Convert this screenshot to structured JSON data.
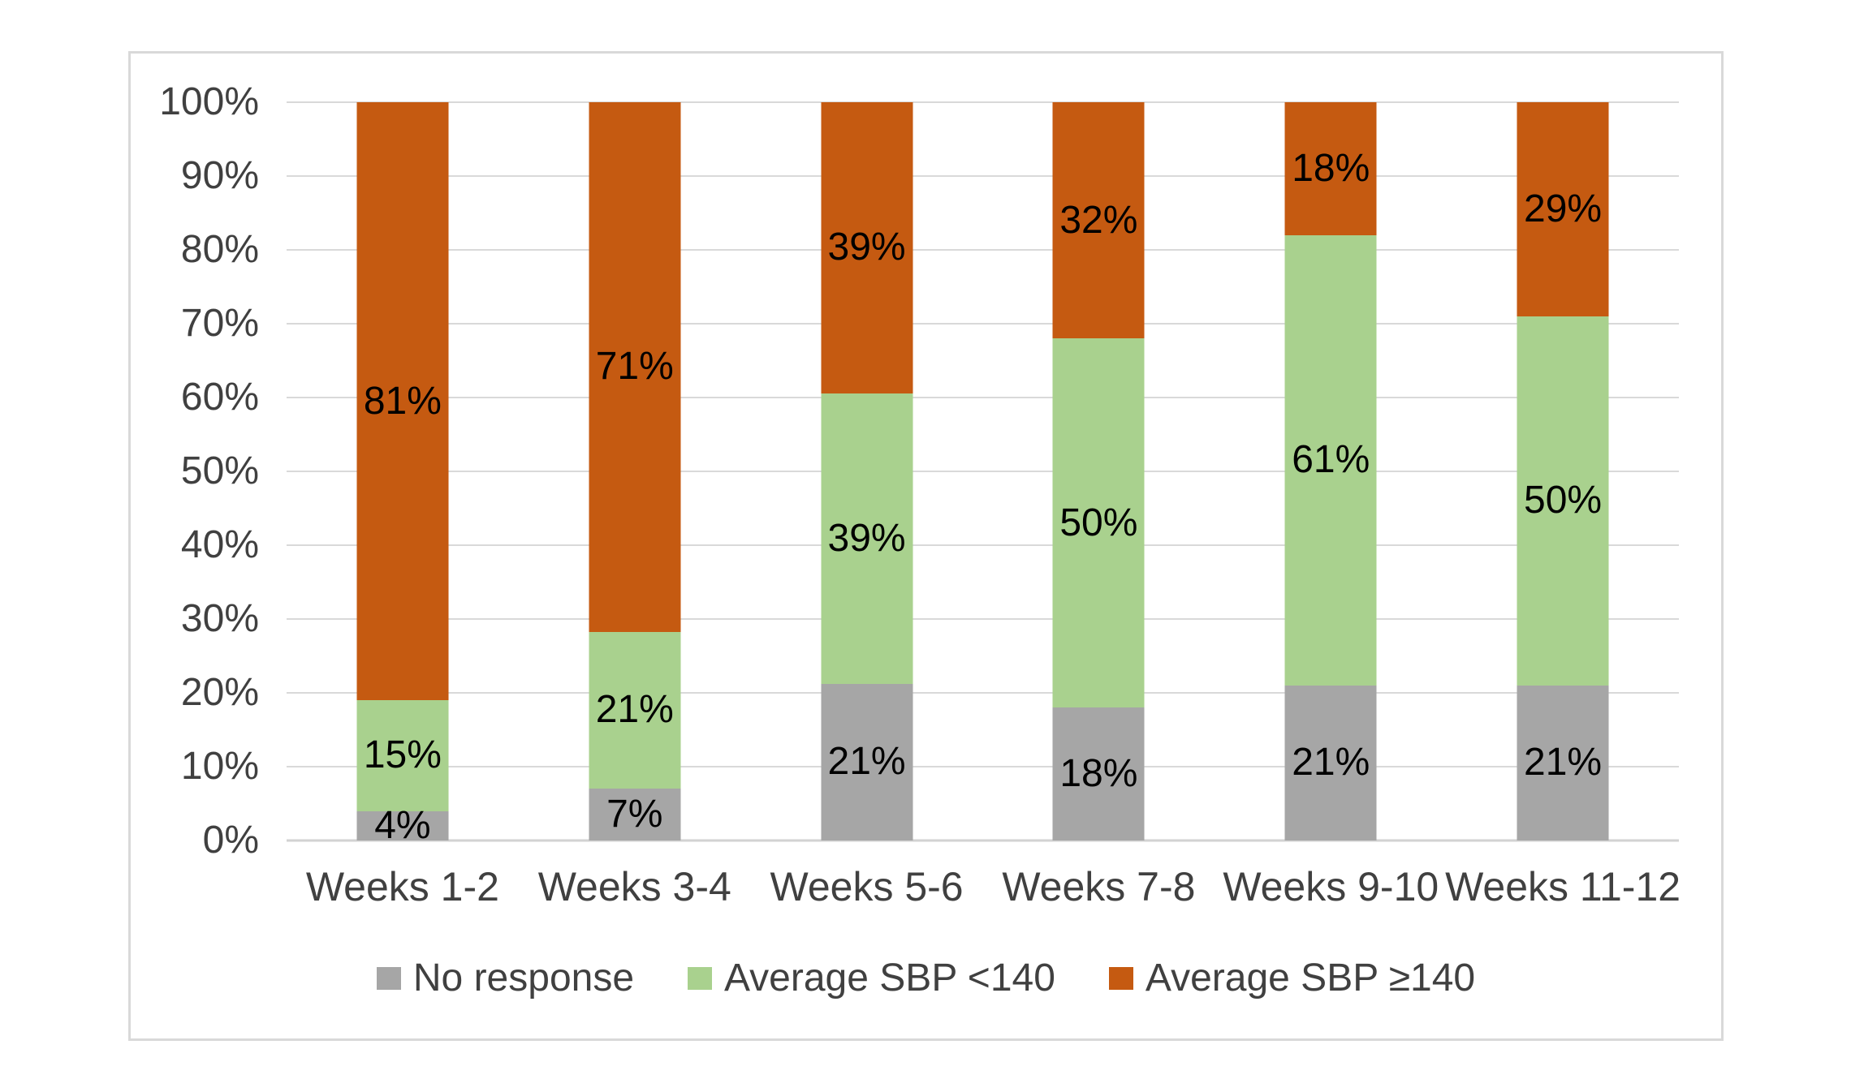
{
  "chart_data": {
    "type": "bar",
    "variant": "stacked-100",
    "title": "",
    "xlabel": "",
    "ylabel": "",
    "ylim": [
      0,
      100
    ],
    "grid": true,
    "legend_position": "bottom",
    "categories": [
      "Weeks 1-2",
      "Weeks 3-4",
      "Weeks 5-6",
      "Weeks 7-8",
      "Weeks 9-10",
      "Weeks 11-12"
    ],
    "yticks": [
      "0%",
      "10%",
      "20%",
      "30%",
      "40%",
      "50%",
      "60%",
      "70%",
      "80%",
      "90%",
      "100%"
    ],
    "series": [
      {
        "name": "No response",
        "color": "#A6A6A6",
        "values": [
          4,
          7,
          21,
          18,
          21,
          21
        ],
        "labels": [
          "4%",
          "7%",
          "21%",
          "18%",
          "21%",
          "21%"
        ]
      },
      {
        "name": "Average SBP <140",
        "color": "#A9D18E",
        "values": [
          15,
          21,
          39,
          50,
          61,
          50
        ],
        "labels": [
          "15%",
          "21%",
          "39%",
          "50%",
          "61%",
          "50%"
        ]
      },
      {
        "name": "Average SBP ≥140",
        "color": "#C55A11",
        "values": [
          81,
          71,
          39,
          32,
          18,
          29
        ],
        "labels": [
          "81%",
          "71%",
          "39%",
          "32%",
          "18%",
          "29%"
        ]
      }
    ],
    "colors": {
      "gridline": "#D9D9D9",
      "chart_border": "#D9D9D9",
      "axis_text": "#404040",
      "data_label_text": "#000000",
      "background": "#FFFFFF"
    }
  }
}
